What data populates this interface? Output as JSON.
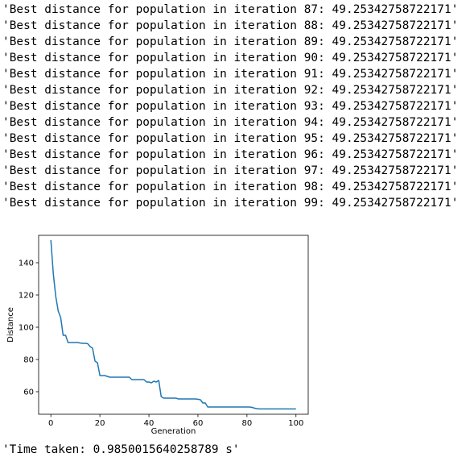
{
  "output": {
    "lines": [
      "'Best distance for population in iteration 87: 49.25342758722171'",
      "'Best distance for population in iteration 88: 49.25342758722171'",
      "'Best distance for population in iteration 89: 49.25342758722171'",
      "'Best distance for population in iteration 90: 49.25342758722171'",
      "'Best distance for population in iteration 91: 49.25342758722171'",
      "'Best distance for population in iteration 92: 49.25342758722171'",
      "'Best distance for population in iteration 93: 49.25342758722171'",
      "'Best distance for population in iteration 94: 49.25342758722171'",
      "'Best distance for population in iteration 95: 49.25342758722171'",
      "'Best distance for population in iteration 96: 49.25342758722171'",
      "'Best distance for population in iteration 97: 49.25342758722171'",
      "'Best distance for population in iteration 98: 49.25342758722171'",
      "'Best distance for population in iteration 99: 49.25342758722171'"
    ],
    "time_taken": "'Time taken: 0.9850015640258789 s'"
  },
  "chart_data": {
    "type": "line",
    "title": "",
    "xlabel": "Generation",
    "ylabel": "Distance",
    "xlim": [
      -5,
      105
    ],
    "ylim": [
      46,
      157
    ],
    "xticks": [
      0,
      20,
      40,
      60,
      80,
      100
    ],
    "yticks": [
      60,
      80,
      100,
      120,
      140
    ],
    "grid": false,
    "line_color": "#1f77b4",
    "series": [
      {
        "x": [
          0,
          1,
          2,
          3,
          4,
          5,
          6,
          7,
          8,
          9,
          10,
          11,
          12,
          13,
          14,
          15,
          16,
          17,
          18,
          19,
          20,
          21,
          22,
          23,
          24,
          25,
          26,
          27,
          28,
          29,
          30,
          31,
          32,
          33,
          34,
          35,
          36,
          37,
          38,
          39,
          40,
          41,
          42,
          43,
          44,
          45,
          46,
          47,
          48,
          49,
          50,
          51,
          52,
          53,
          54,
          55,
          56,
          57,
          58,
          59,
          60,
          61,
          62,
          63,
          64,
          65,
          66,
          67,
          68,
          69,
          70,
          71,
          72,
          73,
          74,
          75,
          76,
          77,
          78,
          79,
          80,
          81,
          82,
          83,
          84,
          85,
          86,
          87,
          88,
          89,
          90,
          91,
          92,
          93,
          94,
          95,
          96,
          97,
          98,
          99,
          100
        ],
        "y": [
          154,
          133,
          119,
          110,
          106,
          95,
          95,
          90.5,
          90.5,
          90.5,
          90.5,
          90.5,
          90.2,
          90,
          90,
          89.8,
          88,
          87,
          79,
          78,
          70,
          70,
          70,
          69.5,
          69,
          69,
          69,
          69,
          69,
          69,
          69,
          69,
          69,
          67.5,
          67.5,
          67.5,
          67.5,
          67.5,
          67.5,
          66,
          66,
          65.5,
          66.5,
          66,
          67,
          57,
          56,
          56,
          56,
          56,
          56,
          56,
          55.5,
          55.5,
          55.5,
          55.5,
          55.5,
          55.5,
          55.5,
          55.5,
          55.3,
          55,
          53,
          53,
          50.5,
          50.5,
          50.5,
          50.5,
          50.5,
          50.5,
          50.5,
          50.5,
          50.5,
          50.5,
          50.5,
          50.5,
          50.5,
          50.5,
          50.5,
          50.5,
          50.5,
          50.5,
          50.3,
          49.8,
          49.5,
          49.3,
          49.3,
          49.3,
          49.3,
          49.3,
          49.3,
          49.3,
          49.3,
          49.3,
          49.3,
          49.3,
          49.3,
          49.3,
          49.3,
          49.3,
          49.3
        ]
      }
    ]
  }
}
